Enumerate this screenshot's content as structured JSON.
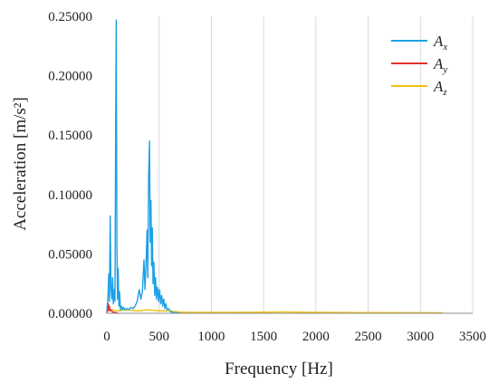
{
  "chart_data": {
    "type": "line",
    "xlabel": "Frequency [Hz]",
    "ylabel": "Acceleration [m/s²]",
    "xlim": [
      0,
      3500
    ],
    "ylim": [
      0,
      0.25
    ],
    "x_ticks": [
      "0",
      "500",
      "1000",
      "1500",
      "2000",
      "2500",
      "3000",
      "3500"
    ],
    "y_ticks": [
      "0.00000",
      "0.05000",
      "0.10000",
      "0.15000",
      "0.20000",
      "0.25000"
    ],
    "grid": "vertical",
    "legend_position": "top-right",
    "series": [
      {
        "name": "A",
        "subscript": "x",
        "color": "#1ea0e6",
        "x": [
          0,
          10,
          18,
          25,
          32,
          40,
          48,
          55,
          62,
          70,
          78,
          85,
          90,
          96,
          102,
          108,
          115,
          122,
          130,
          140,
          150,
          160,
          175,
          190,
          210,
          230,
          250,
          270,
          290,
          310,
          325,
          340,
          355,
          365,
          375,
          385,
          392,
          400,
          408,
          415,
          422,
          428,
          435,
          442,
          450,
          458,
          466,
          475,
          485,
          495,
          505,
          515,
          525,
          535,
          545,
          555,
          565,
          575,
          590,
          605,
          620,
          640,
          700
        ],
        "y": [
          0.002,
          0.012,
          0.033,
          0.01,
          0.082,
          0.02,
          0.012,
          0.03,
          0.008,
          0.02,
          0.01,
          0.17,
          0.247,
          0.06,
          0.012,
          0.038,
          0.006,
          0.018,
          0.003,
          0.006,
          0.003,
          0.005,
          0.003,
          0.004,
          0.003,
          0.005,
          0.004,
          0.006,
          0.01,
          0.02,
          0.012,
          0.018,
          0.045,
          0.02,
          0.042,
          0.07,
          0.03,
          0.116,
          0.145,
          0.06,
          0.095,
          0.04,
          0.072,
          0.025,
          0.043,
          0.015,
          0.03,
          0.012,
          0.022,
          0.01,
          0.02,
          0.008,
          0.015,
          0.006,
          0.012,
          0.004,
          0.008,
          0.003,
          0.004,
          0.002,
          0.001,
          0.0005,
          0.0002
        ]
      },
      {
        "name": "A",
        "subscript": "y",
        "color": "#e0322d",
        "x": [
          0,
          5,
          10,
          15,
          20,
          25,
          30,
          40,
          55,
          70,
          90,
          110
        ],
        "y": [
          0.0,
          0.006,
          0.002,
          0.008,
          0.003,
          0.006,
          0.002,
          0.003,
          0.001,
          0.001,
          0.0005,
          0.0
        ]
      },
      {
        "name": "A",
        "subscript": "z",
        "color": "#f0c014",
        "x": [
          0,
          50,
          100,
          200,
          300,
          400,
          500,
          600,
          700,
          800,
          1000,
          1200,
          1400,
          1600,
          1700,
          1800,
          2000,
          2200,
          2400,
          2600,
          2800,
          3000,
          3200,
          3220
        ],
        "y": [
          0.002,
          0.003,
          0.002,
          0.003,
          0.002,
          0.003,
          0.002,
          0.002,
          0.001,
          0.0008,
          0.0008,
          0.0008,
          0.0009,
          0.001,
          0.0012,
          0.001,
          0.0008,
          0.0007,
          0.0006,
          0.0006,
          0.0005,
          0.0005,
          0.0004,
          0.0
        ]
      }
    ]
  }
}
